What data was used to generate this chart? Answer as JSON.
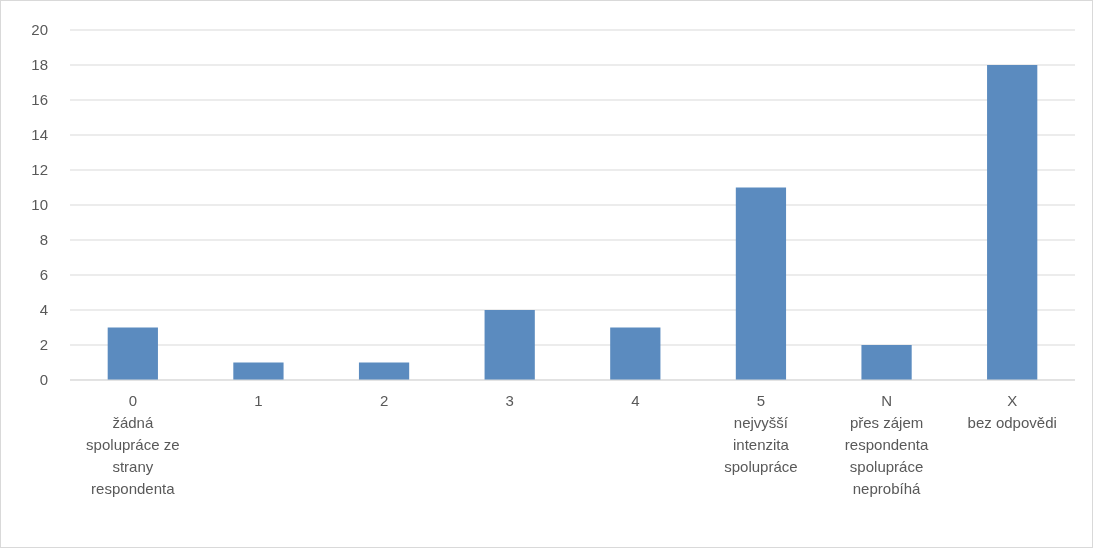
{
  "chart_data": {
    "type": "bar",
    "categories": [
      "0\nžádná spolupráce ze strany respondenta",
      "1",
      "2",
      "3",
      "4",
      "5\nnejvyšší intenzita spolupráce",
      "N\npřes zájem respondenta spolupráce neprobíhá",
      "X\nbez odpovědi"
    ],
    "values": [
      3,
      1,
      1,
      4,
      3,
      11,
      2,
      18
    ],
    "color": "#5b8bbf",
    "ylim": [
      0,
      20
    ],
    "yticks": [
      0,
      2,
      4,
      6,
      8,
      10,
      12,
      14,
      16,
      18,
      20
    ],
    "grid": "y"
  }
}
